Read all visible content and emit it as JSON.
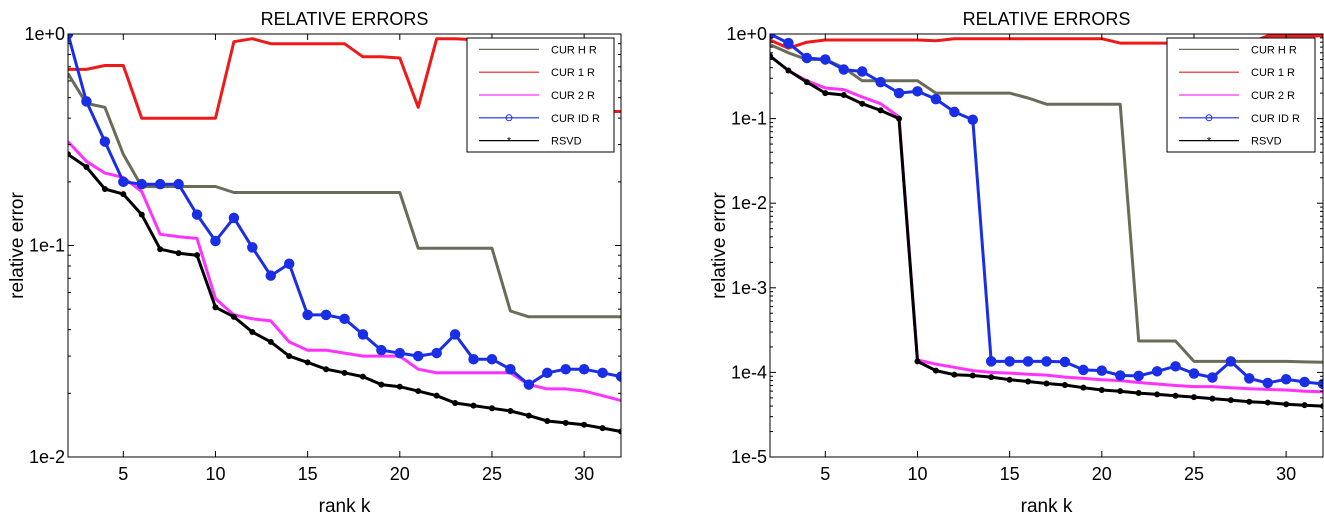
{
  "chart_data": [
    {
      "type": "line",
      "title": "RELATIVE ERRORS",
      "xlabel": "rank k",
      "ylabel": "relative error",
      "yscale": "log",
      "xlim": [
        2,
        32
      ],
      "ylim": [
        0.01,
        1
      ],
      "xticks": [
        5,
        10,
        15,
        20,
        25,
        30
      ],
      "xtick_labels": [
        "5",
        "10",
        "15",
        "20",
        "25",
        "30"
      ],
      "yticks": [
        0.01,
        0.1,
        1
      ],
      "ytick_labels": [
        "1e-2",
        "1e-1",
        "1e+0"
      ],
      "grid": false,
      "legend_position": "top-right",
      "x": [
        2,
        3,
        4,
        5,
        6,
        7,
        8,
        9,
        10,
        11,
        12,
        13,
        14,
        15,
        16,
        17,
        18,
        19,
        20,
        21,
        22,
        23,
        24,
        25,
        26,
        27,
        28,
        29,
        30,
        31,
        32
      ],
      "series": [
        {
          "name": "CUR H R",
          "color": "#6b6b5a",
          "marker": "none",
          "values": [
            0.65,
            0.47,
            0.45,
            0.27,
            0.19,
            0.19,
            0.19,
            0.19,
            0.19,
            0.178,
            0.178,
            0.178,
            0.178,
            0.178,
            0.178,
            0.178,
            0.178,
            0.178,
            0.178,
            0.097,
            0.097,
            0.097,
            0.097,
            0.097,
            0.049,
            0.046,
            0.046,
            0.046,
            0.046,
            0.046,
            0.046
          ]
        },
        {
          "name": "CUR 1 R",
          "color": "#ee1a1a",
          "marker": "none",
          "values": [
            0.68,
            0.68,
            0.71,
            0.71,
            0.4,
            0.4,
            0.4,
            0.4,
            0.4,
            0.92,
            0.95,
            0.9,
            0.9,
            0.9,
            0.9,
            0.9,
            0.78,
            0.78,
            0.77,
            0.45,
            0.95,
            0.95,
            0.94,
            0.94,
            0.43,
            0.43,
            0.43,
            0.43,
            0.43,
            0.43,
            0.43
          ]
        },
        {
          "name": "CUR 2 R",
          "color": "#ff33ff",
          "marker": "none",
          "values": [
            0.31,
            0.25,
            0.22,
            0.21,
            0.18,
            0.113,
            0.11,
            0.108,
            0.056,
            0.047,
            0.045,
            0.044,
            0.035,
            0.032,
            0.032,
            0.031,
            0.03,
            0.03,
            0.03,
            0.026,
            0.025,
            0.025,
            0.025,
            0.025,
            0.025,
            0.022,
            0.021,
            0.021,
            0.0205,
            0.0195,
            0.0185
          ]
        },
        {
          "name": "CUR ID R",
          "color": "#1a2ee6",
          "marker": "circle",
          "values": [
            1.0,
            0.48,
            0.31,
            0.2,
            0.195,
            0.195,
            0.195,
            0.14,
            0.105,
            0.135,
            0.098,
            0.072,
            0.082,
            0.047,
            0.047,
            0.045,
            0.038,
            0.032,
            0.031,
            0.03,
            0.031,
            0.038,
            0.029,
            0.029,
            0.026,
            0.022,
            0.025,
            0.026,
            0.026,
            0.025,
            0.024
          ]
        },
        {
          "name": "RSVD",
          "color": "#000000",
          "marker": "star",
          "values": [
            0.27,
            0.235,
            0.185,
            0.175,
            0.14,
            0.096,
            0.092,
            0.09,
            0.051,
            0.046,
            0.039,
            0.035,
            0.03,
            0.028,
            0.026,
            0.025,
            0.024,
            0.022,
            0.0215,
            0.0205,
            0.0195,
            0.018,
            0.0175,
            0.017,
            0.0165,
            0.0157,
            0.0148,
            0.0145,
            0.0142,
            0.0137,
            0.0132
          ]
        }
      ]
    },
    {
      "type": "line",
      "title": "RELATIVE ERRORS",
      "xlabel": "rank k",
      "ylabel": "relative error",
      "yscale": "log",
      "xlim": [
        2,
        32
      ],
      "ylim": [
        1e-05,
        1
      ],
      "xticks": [
        5,
        10,
        15,
        20,
        25,
        30
      ],
      "xtick_labels": [
        "5",
        "10",
        "15",
        "20",
        "25",
        "30"
      ],
      "yticks": [
        1e-05,
        0.0001,
        0.001,
        0.01,
        0.1,
        1
      ],
      "ytick_labels": [
        "1e-5",
        "1e-4",
        "1e-3",
        "1e-2",
        "1e-1",
        "1e+0"
      ],
      "grid": false,
      "legend_position": "top-right",
      "x": [
        2,
        3,
        4,
        5,
        6,
        7,
        8,
        9,
        10,
        11,
        12,
        13,
        14,
        15,
        16,
        17,
        18,
        19,
        20,
        21,
        22,
        23,
        24,
        25,
        26,
        27,
        28,
        29,
        30,
        31,
        32
      ],
      "series": [
        {
          "name": "CUR H R",
          "color": "#6b6b5a",
          "marker": "none",
          "values": [
            0.75,
            0.6,
            0.5,
            0.5,
            0.4,
            0.28,
            0.28,
            0.28,
            0.28,
            0.2,
            0.2,
            0.2,
            0.2,
            0.2,
            0.175,
            0.148,
            0.148,
            0.148,
            0.148,
            0.148,
            0.000235,
            0.000235,
            0.000235,
            0.000135,
            0.000135,
            0.000135,
            0.000135,
            0.000135,
            0.000135,
            0.000133,
            0.000132
          ]
        },
        {
          "name": "CUR 1 R",
          "color": "#ee1a1a",
          "marker": "none",
          "values": [
            0.85,
            0.68,
            0.8,
            0.85,
            0.85,
            0.85,
            0.85,
            0.85,
            0.85,
            0.83,
            0.88,
            0.88,
            0.88,
            0.88,
            0.88,
            0.88,
            0.88,
            0.88,
            0.88,
            0.78,
            0.78,
            0.78,
            0.78,
            0.78,
            0.78,
            0.78,
            0.78,
            0.95,
            0.95,
            0.95,
            0.95
          ]
        },
        {
          "name": "CUR 2 R",
          "color": "#ff33ff",
          "marker": "none",
          "values": [
            0.55,
            0.37,
            0.28,
            0.23,
            0.22,
            0.18,
            0.15,
            0.105,
            0.00014,
            0.000125,
            0.000115,
            0.000105,
            0.0001,
            9.8e-05,
            9.5e-05,
            9.3e-05,
            8.8e-05,
            8.5e-05,
            8.2e-05,
            8e-05,
            7.6e-05,
            7.3e-05,
            7e-05,
            6.8e-05,
            6.8e-05,
            6.6e-05,
            6.4e-05,
            6.3e-05,
            6.2e-05,
            6e-05,
            5.9e-05
          ]
        },
        {
          "name": "CUR ID R",
          "color": "#1a2ee6",
          "marker": "circle",
          "values": [
            1.0,
            0.78,
            0.52,
            0.5,
            0.38,
            0.36,
            0.27,
            0.2,
            0.21,
            0.17,
            0.12,
            0.097,
            0.000135,
            0.000135,
            0.000135,
            0.000135,
            0.000133,
            0.000107,
            0.000105,
            9.2e-05,
            9.1e-05,
            0.000103,
            0.000118,
            9.7e-05,
            8.7e-05,
            0.000135,
            8.5e-05,
            7.5e-05,
            8.3e-05,
            7.7e-05,
            7.3e-05
          ]
        },
        {
          "name": "RSVD",
          "color": "#000000",
          "marker": "star",
          "values": [
            0.55,
            0.37,
            0.27,
            0.2,
            0.19,
            0.15,
            0.125,
            0.1,
            0.000135,
            0.000105,
            9.4e-05,
            9.2e-05,
            8.8e-05,
            8.2e-05,
            7.8e-05,
            7.4e-05,
            7.1e-05,
            6.6e-05,
            6.2e-05,
            6e-05,
            5.7e-05,
            5.5e-05,
            5.3e-05,
            5.1e-05,
            4.9e-05,
            4.7e-05,
            4.5e-05,
            4.4e-05,
            4.2e-05,
            4.1e-05,
            4e-05
          ]
        }
      ]
    }
  ]
}
